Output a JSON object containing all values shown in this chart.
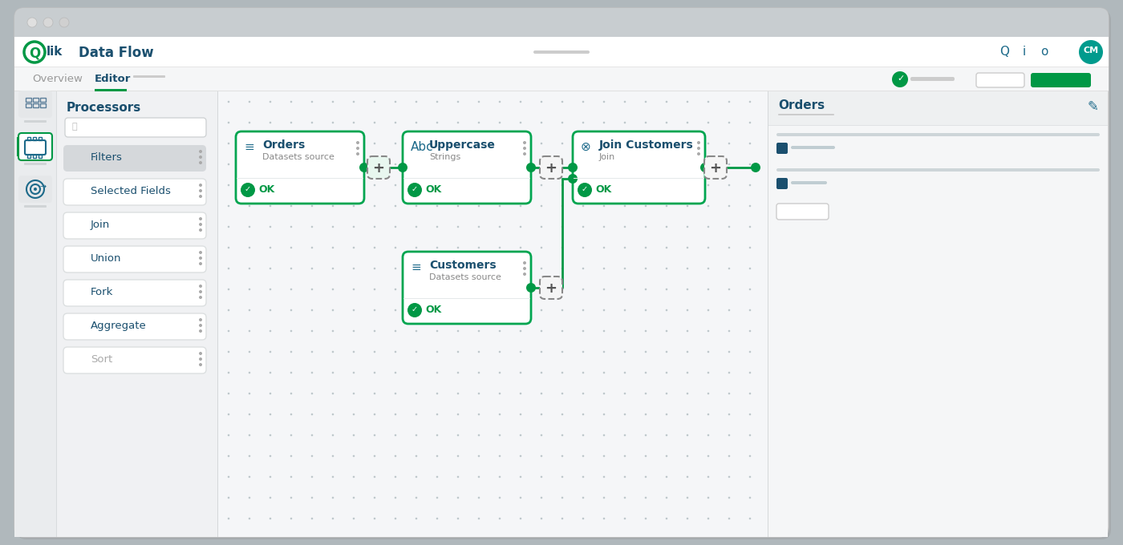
{
  "bg_outer": "#b0b8bc",
  "bg_titlebar": "#c8cdd0",
  "bg_white": "#ffffff",
  "bg_nav": "#ffffff",
  "bg_tab": "#f5f6f7",
  "bg_sidebar_left": "#eaecee",
  "bg_sidebar_left_selected": "#ffffff",
  "bg_proc_panel": "#f0f1f3",
  "bg_canvas": "#f5f6f8",
  "bg_right_panel": "#f5f6f7",
  "green_primary": "#009845",
  "green_border": "#00a550",
  "green_light_bg": "#e8f7ef",
  "teal_dark": "#1a4f6e",
  "teal_mid": "#1d6a8a",
  "gray_text": "#666666",
  "gray_light": "#aaaaaa",
  "gray_mid": "#cccccc",
  "dot_color": "#bfc8cc",
  "title": "Data Flow",
  "tab_overview": "Overview",
  "tab_editor": "Editor",
  "panel_title": "Processors",
  "sidebar_title": "Orders",
  "processor_items": [
    "Filters",
    "Selected Fields",
    "Join",
    "Union",
    "Fork",
    "Aggregate",
    "Sort"
  ],
  "node_orders_title": "Orders",
  "node_orders_sub": "Datasets source",
  "node_upper_title": "Uppercase",
  "node_upper_sub": "Strings",
  "node_join_title": "Join Customers",
  "node_join_sub": "Join",
  "node_cust_title": "Customers",
  "node_cust_sub": "Datasets source",
  "ok_text": "OK",
  "traffic_red": "#e0e0e0",
  "traffic_yellow": "#d8d8d8",
  "traffic_green": "#d0d0d0",
  "avatar_color": "#009b8d",
  "avatar_text": "CM"
}
